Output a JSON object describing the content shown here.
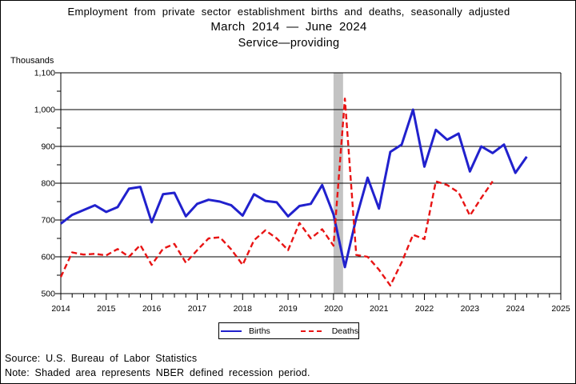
{
  "title": {
    "line1": "Employment from private sector establishment births and deaths, seasonally adjusted",
    "line2": "March 2014 — June 2024",
    "line3": "Service—providing"
  },
  "y_axis": {
    "unit_label": "Thousands",
    "tick_values": [
      500,
      600,
      700,
      800,
      900,
      1000,
      1100
    ],
    "tick_labels": [
      "500",
      "600",
      "700",
      "800",
      "900",
      "1,000",
      "1,100"
    ],
    "minor_tick_values": [
      550,
      650,
      750,
      850,
      950,
      1050
    ]
  },
  "x_axis": {
    "year_values": [
      2014,
      2015,
      2016,
      2017,
      2018,
      2019,
      2020,
      2021,
      2022,
      2023,
      2024,
      2025
    ],
    "year_labels": [
      "2014",
      "2015",
      "2016",
      "2017",
      "2018",
      "2019",
      "2020",
      "2021",
      "2022",
      "2023",
      "2024",
      "2025"
    ]
  },
  "legend": {
    "items": [
      {
        "label": "Births",
        "style": "solid"
      },
      {
        "label": "Deaths",
        "style": "dashed"
      }
    ]
  },
  "footer": {
    "source": "Source: U.S. Bureau of Labor Statistics",
    "note": "Note: Shaded area represents NBER defined recession period."
  },
  "colors": {
    "births": "#2121cd",
    "deaths": "#e81414",
    "recession_band": "#c3c3c3",
    "axis": "#000000"
  },
  "recession_band": {
    "x_start": 2020.0,
    "x_end": 2020.21
  },
  "chart_data": {
    "type": "line",
    "title": "Employment from private sector establishment births and deaths, seasonally adjusted, March 2014 — June 2024, Service-providing",
    "xlabel": "",
    "ylabel": "Thousands",
    "ylim": [
      500,
      1100
    ],
    "xlim": [
      2014,
      2025
    ],
    "x_start": 2014.0,
    "x_step_years": 0.25,
    "x_unit": "quarterly, starting March 2014",
    "grid": true,
    "legend_position": "bottom-center",
    "series": [
      {
        "name": "Births",
        "color": "#2121cd",
        "line_style": "solid",
        "values": [
          690,
          714,
          727,
          740,
          722,
          735,
          785,
          790,
          694,
          770,
          774,
          710,
          744,
          755,
          750,
          740,
          712,
          770,
          752,
          748,
          710,
          738,
          744,
          795,
          715,
          572,
          705,
          815,
          731,
          885,
          905,
          1000,
          845,
          945,
          918,
          935,
          832,
          900,
          882,
          905,
          828,
          872
        ]
      },
      {
        "name": "Deaths",
        "color": "#e81414",
        "line_style": "dashed",
        "values": [
          545,
          612,
          606,
          608,
          604,
          621,
          600,
          632,
          578,
          622,
          635,
          584,
          618,
          650,
          653,
          620,
          578,
          645,
          672,
          650,
          618,
          692,
          650,
          675,
          630,
          1030,
          605,
          600,
          565,
          522,
          585,
          660,
          648,
          805,
          795,
          775,
          712,
          760,
          805
        ]
      }
    ]
  }
}
